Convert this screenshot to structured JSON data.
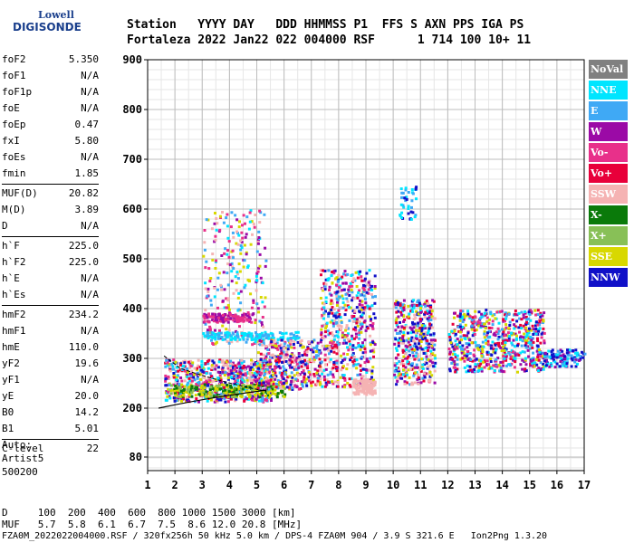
{
  "logo": {
    "line1": "Lowell",
    "line2": "DIGISONDE"
  },
  "header": {
    "line1": "Station   YYYY DAY   DDD HHMMSS P1  FFS S AXN PPS IGA PS",
    "line2": "Fortaleza 2022 Jan22 022 004000 RSF      1 714 100 10+ 11"
  },
  "params": [
    [
      [
        "foF2",
        "5.350"
      ],
      [
        "foF1",
        "N/A"
      ],
      [
        "foF1p",
        "N/A"
      ],
      [
        "foE",
        "N/A"
      ],
      [
        "foEp",
        "0.47"
      ],
      [
        "fxI",
        "5.80"
      ],
      [
        "foEs",
        "N/A"
      ],
      [
        "fmin",
        "1.85"
      ]
    ],
    [
      [
        "MUF(D)",
        "20.82"
      ],
      [
        "M(D)",
        "3.89"
      ],
      [
        "D",
        "N/A"
      ]
    ],
    [
      [
        "h`F",
        "225.0"
      ],
      [
        "h`F2",
        "225.0"
      ],
      [
        "h`E",
        "N/A"
      ],
      [
        "h`Es",
        "N/A"
      ]
    ],
    [
      [
        "hmF2",
        "234.2"
      ],
      [
        "hmF1",
        "N/A"
      ],
      [
        "hmE",
        "110.0"
      ],
      [
        "yF2",
        "19.6"
      ],
      [
        "yF1",
        "N/A"
      ],
      [
        "yE",
        "20.0"
      ],
      [
        "B0",
        "14.2"
      ],
      [
        "B1",
        "5.01"
      ]
    ],
    [
      [
        "C-level",
        "22"
      ]
    ]
  ],
  "auto": [
    "Auto:",
    "Artist5",
    "500200"
  ],
  "legend": [
    {
      "label": "NoVal",
      "color": "#808080"
    },
    {
      "label": "NNE",
      "color": "#00e5ff"
    },
    {
      "label": "E",
      "color": "#3fa9f5"
    },
    {
      "label": "W",
      "color": "#9b0aa6"
    },
    {
      "label": "Vo-",
      "color": "#e8308a"
    },
    {
      "label": "Vo+",
      "color": "#e8003a"
    },
    {
      "label": "SSW",
      "color": "#f5b3b3"
    },
    {
      "label": "X-",
      "color": "#0a7a0a"
    },
    {
      "label": "X+",
      "color": "#88c057"
    },
    {
      "label": "SSE",
      "color": "#d8d800"
    },
    {
      "label": "NNW",
      "color": "#1010c8"
    }
  ],
  "axis": {
    "y_ticks": [
      "900",
      "800",
      "700",
      "600",
      "500",
      "400",
      "300",
      "200",
      "80"
    ],
    "x_ticks": [
      "1",
      "2",
      "3",
      "4",
      "5",
      "6",
      "7",
      "8",
      "9",
      "10",
      "11",
      "12",
      "13",
      "14",
      "15",
      "16",
      "17"
    ],
    "x_range": [
      1,
      17
    ],
    "y_range_km": [
      80,
      900
    ]
  },
  "footer": {
    "d_line": "D     100  200  400  600  800 1000 1500 3000 [km]",
    "muf_line": "MUF   5.7  5.8  6.1  6.7  7.5  8.6 12.0 20.8 [MHz]",
    "file_line": "FZA0M_2022022004000.RSF / 320fx256h 50 kHz 5.0 km / DPS-4 FZA0M 904 / 3.9 S 321.6 E   Ion2Png 1.3.20"
  }
}
